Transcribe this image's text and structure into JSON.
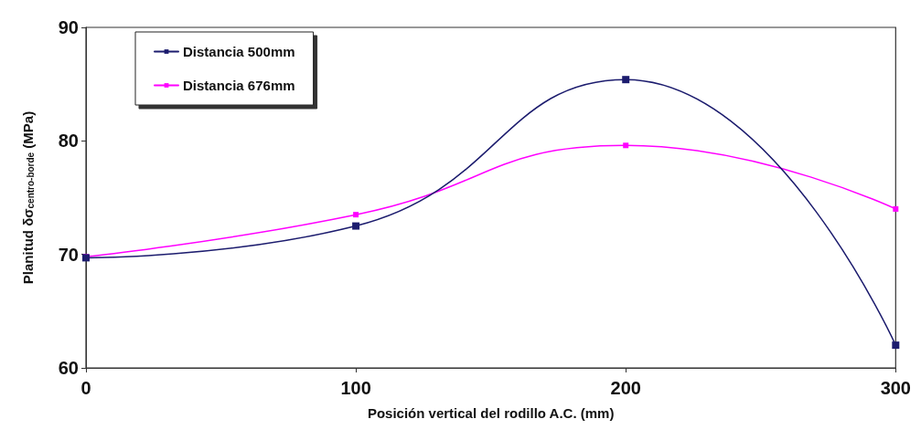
{
  "chart_data": {
    "type": "line",
    "xlabel": "Posición vertical del rodillo A.C. (mm)",
    "ylabel": "Planitud δσ$_{centro-borde}$ (MPa)",
    "x": [
      0,
      100,
      200,
      300
    ],
    "series": [
      {
        "name": "Distancia 500mm",
        "color": "#1c1c6e",
        "values": [
          69.7,
          72.5,
          85.4,
          62.0
        ]
      },
      {
        "name": "Distancia 676mm",
        "color": "#ff00ff",
        "values": [
          69.8,
          73.5,
          79.6,
          74.0
        ]
      }
    ],
    "xlim": [
      0,
      300
    ],
    "xticks": [
      0,
      100,
      200,
      300
    ],
    "ylim": [
      60,
      90
    ],
    "yticks": [
      60,
      70,
      80,
      90
    ],
    "grid": false,
    "legend": "top left",
    "marker": "square",
    "line_style": "solid"
  }
}
